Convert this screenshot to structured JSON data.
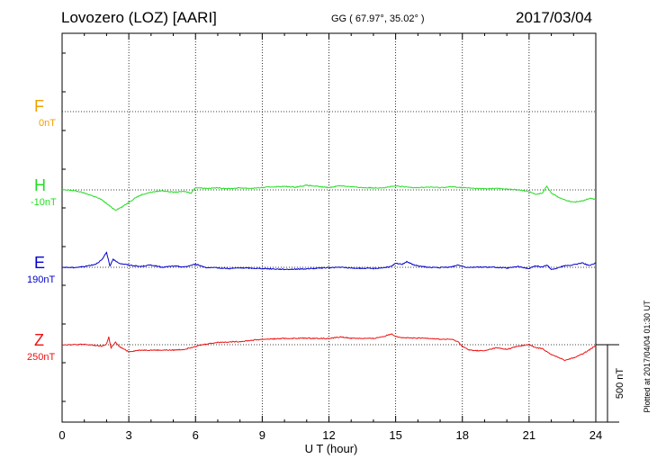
{
  "header": {
    "station": "Lovozero (LOZ)  [AARI]",
    "coordinates": "GG ( 67.97°,  35.02° )",
    "date": "2017/03/04"
  },
  "plotted_note": "Plotted at 2017/04/04 01:30 UT",
  "scale_label": "500 nT",
  "chart_data": {
    "type": "line",
    "xlabel": "U T (hour)",
    "xlim": [
      0,
      24
    ],
    "xticks": [
      "0",
      "3",
      "6",
      "9",
      "12",
      "15",
      "18",
      "21",
      "24"
    ],
    "grid": true,
    "nT_per_500_bar": 500,
    "series": [
      {
        "name": "F",
        "offset_label": "0nT",
        "color": "#f0a000",
        "base": 0,
        "x": [],
        "y": []
      },
      {
        "name": "H",
        "offset_label": "-10nT",
        "color": "#22dd22",
        "base": -10,
        "x": [
          0,
          0.4,
          0.8,
          1.2,
          1.5,
          1.8,
          2.1,
          2.4,
          2.7,
          3.0,
          3.3,
          3.6,
          4.0,
          4.5,
          5.0,
          5.5,
          5.8,
          6.0,
          6.5,
          7.0,
          7.5,
          8.0,
          8.5,
          9.0,
          9.5,
          10.0,
          10.5,
          11.0,
          11.5,
          12.0,
          12.5,
          13.0,
          13.5,
          14.0,
          14.5,
          15.0,
          15.5,
          16.0,
          16.5,
          17.0,
          17.5,
          18.0,
          18.5,
          19.0,
          19.5,
          20.0,
          20.5,
          21.0,
          21.3,
          21.6,
          21.8,
          22.0,
          22.3,
          22.6,
          23.0,
          23.4,
          23.7,
          24.0
        ],
        "y": [
          -10,
          -12,
          -22,
          -40,
          -55,
          -75,
          -110,
          -140,
          -120,
          -90,
          -60,
          -40,
          -25,
          -15,
          -25,
          -20,
          -30,
          5,
          0,
          3,
          -2,
          3,
          0,
          5,
          10,
          12,
          8,
          20,
          12,
          5,
          18,
          10,
          5,
          3,
          5,
          15,
          8,
          5,
          8,
          5,
          10,
          5,
          0,
          -3,
          0,
          -5,
          -10,
          -20,
          -40,
          -30,
          15,
          -30,
          -55,
          -75,
          -90,
          -80,
          -65,
          -70
        ]
      },
      {
        "name": "E",
        "offset_label": "190nT",
        "color": "#0000cc",
        "base": 190,
        "x": [
          0,
          0.5,
          1.0,
          1.5,
          1.8,
          2.0,
          2.15,
          2.3,
          2.6,
          3.0,
          3.5,
          4.0,
          4.5,
          5.0,
          5.5,
          6.0,
          6.5,
          7.0,
          7.5,
          8.0,
          9.0,
          10.0,
          11.0,
          12.0,
          12.5,
          13.0,
          14.0,
          14.5,
          14.8,
          15.0,
          15.3,
          15.5,
          15.8,
          16.2,
          16.5,
          17.0,
          17.5,
          17.8,
          18.2,
          18.8,
          19.5,
          20.0,
          20.5,
          21.0,
          21.3,
          21.6,
          21.8,
          22.0,
          22.3,
          22.6,
          23.0,
          23.4,
          23.7,
          24.0
        ],
        "y": [
          190,
          188,
          195,
          210,
          240,
          285,
          200,
          240,
          215,
          205,
          195,
          205,
          190,
          198,
          192,
          210,
          188,
          186,
          182,
          186,
          182,
          177,
          180,
          188,
          190,
          185,
          182,
          188,
          195,
          215,
          210,
          228,
          205,
          195,
          190,
          188,
          192,
          205,
          190,
          192,
          190,
          185,
          195,
          182,
          200,
          190,
          205,
          175,
          188,
          200,
          205,
          220,
          200,
          218
        ]
      },
      {
        "name": "Z",
        "offset_label": "250nT",
        "color": "#ee1111",
        "base": 250,
        "x": [
          0,
          0.5,
          1.0,
          1.5,
          1.8,
          2.0,
          2.1,
          2.2,
          2.4,
          2.6,
          2.8,
          3.0,
          3.5,
          4.0,
          5.0,
          5.5,
          6.0,
          6.5,
          7.0,
          7.5,
          8.0,
          8.5,
          9.0,
          10.0,
          11.0,
          12.0,
          12.5,
          13.0,
          14.0,
          14.5,
          14.8,
          15.0,
          15.3,
          15.8,
          16.5,
          17.0,
          17.5,
          17.8,
          18.0,
          18.3,
          18.6,
          19.0,
          19.5,
          20.0,
          20.5,
          21.0,
          21.3,
          21.6,
          22.0,
          22.3,
          22.6,
          23.0,
          23.4,
          23.7,
          24.0
        ],
        "y": [
          250,
          250,
          252,
          245,
          240,
          255,
          300,
          230,
          265,
          235,
          220,
          205,
          215,
          215,
          215,
          220,
          240,
          255,
          265,
          268,
          270,
          278,
          285,
          290,
          292,
          290,
          300,
          292,
          290,
          305,
          320,
          305,
          295,
          292,
          292,
          285,
          285,
          270,
          240,
          215,
          212,
          210,
          230,
          220,
          240,
          250,
          230,
          225,
          185,
          170,
          150,
          165,
          190,
          215,
          245
        ]
      }
    ]
  }
}
